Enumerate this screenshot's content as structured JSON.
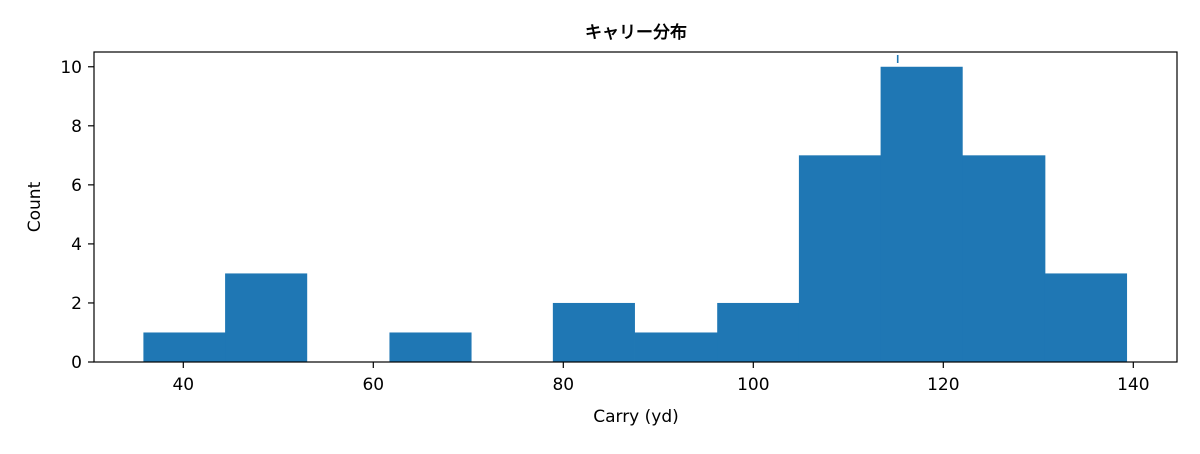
{
  "chart_data": {
    "type": "bar",
    "title": "キャリー分布",
    "xlabel": "Carry (yd)",
    "ylabel": "Count",
    "xlim": [
      30.6,
      144.6
    ],
    "ylim": [
      0,
      10.5
    ],
    "x_ticks": [
      40,
      60,
      80,
      100,
      120,
      140
    ],
    "y_ticks": [
      0,
      2,
      4,
      6,
      8,
      10
    ],
    "bin_edges": [
      35.8,
      44.4,
      53.0,
      61.7,
      70.3,
      78.9,
      87.5,
      96.2,
      104.8,
      113.4,
      122.0,
      130.7,
      139.3
    ],
    "counts": [
      1,
      3,
      0,
      1,
      0,
      2,
      1,
      2,
      7,
      10,
      7,
      3
    ],
    "marker_x": 115.2,
    "bar_color": "#1f77b4",
    "grid": false
  }
}
